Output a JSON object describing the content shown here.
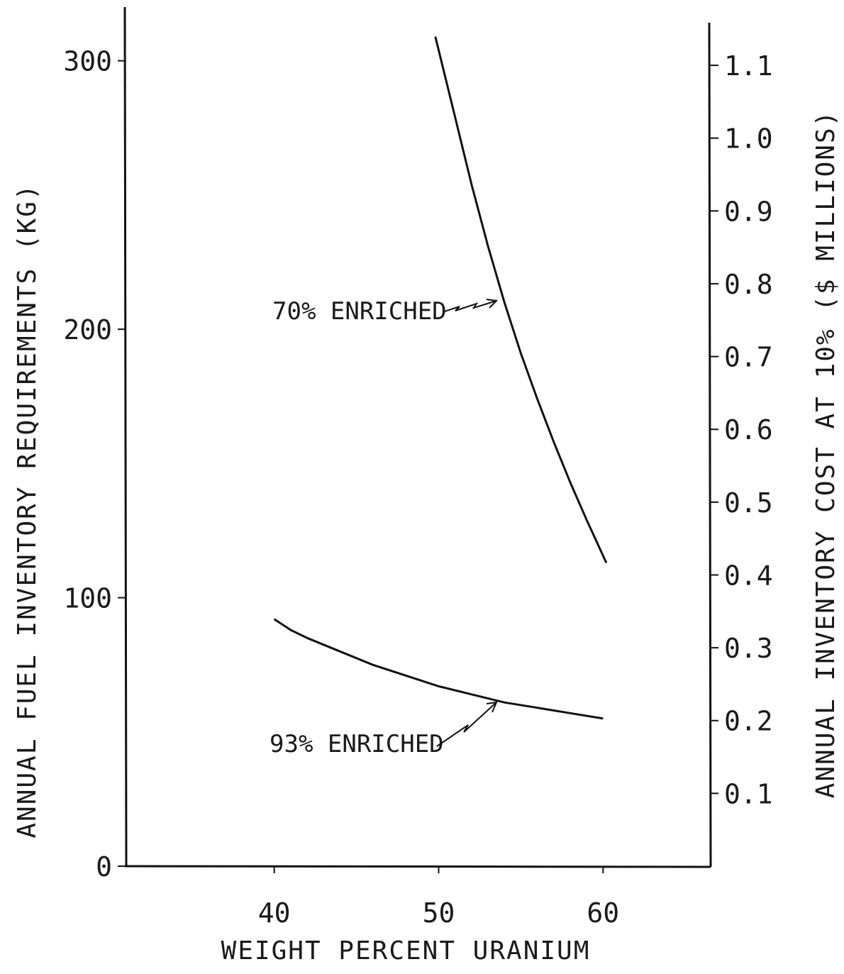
{
  "chart_data": {
    "type": "line",
    "title": "",
    "xlabel": "WEIGHT PERCENT URANIUM",
    "ylabel": "ANNUAL FUEL INVENTORY REQUIREMENTS (KG)",
    "y2label": "ANNUAL INVENTORY COST AT 10% ($ MILLIONS)",
    "xlim": [
      31,
      66.5
    ],
    "ylim": [
      0,
      320
    ],
    "y2lim": [
      0,
      1.18
    ],
    "x_ticks": [
      "40",
      "50",
      "60"
    ],
    "y_ticks": [
      "0",
      "100",
      "200",
      "300"
    ],
    "y2_ticks": [
      "0.1",
      "0.2",
      "0.3",
      "0.4",
      "0.5",
      "0.6",
      "0.7",
      "0.8",
      "0.9",
      "1.0",
      "1.1"
    ],
    "grid": false,
    "series": [
      {
        "name": "70% ENRICHED",
        "x": [
          49.8,
          51,
          52,
          53,
          54,
          55,
          56,
          57,
          58,
          59,
          60.2
        ],
        "y": [
          309,
          279,
          254,
          231,
          210,
          191,
          174,
          158,
          143,
          129,
          113
        ]
      },
      {
        "name": "93% ENRICHED",
        "x": [
          40,
          41,
          42,
          44,
          46,
          48,
          50,
          52,
          54,
          56,
          58,
          60
        ],
        "y": [
          92,
          88,
          85,
          80,
          75,
          71,
          67,
          64,
          61,
          59,
          57,
          55
        ]
      }
    ],
    "annotations": [
      "70% ENRICHED",
      "93% ENRICHED"
    ]
  }
}
